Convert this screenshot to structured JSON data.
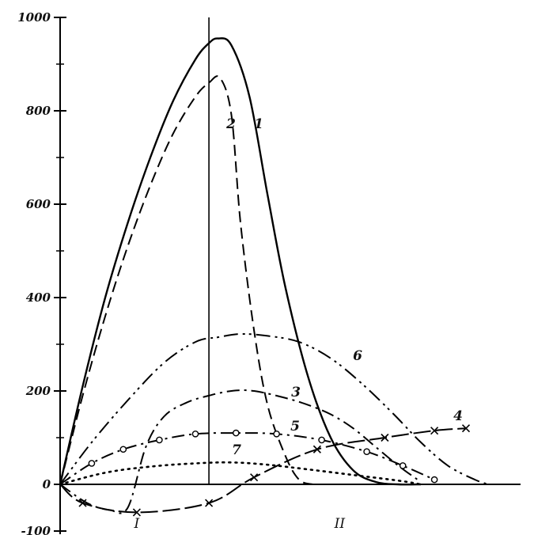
{
  "chart_data": {
    "type": "line",
    "title": "",
    "xlabel": "",
    "ylabel": "",
    "ylim": [
      -100,
      1000
    ],
    "xlim": [
      0,
      10
    ],
    "y_ticks": [
      -100,
      0,
      200,
      400,
      600,
      800,
      1000
    ],
    "y_tick_labels": [
      "-100",
      "0",
      "200",
      "400",
      "600",
      "800",
      "1000"
    ],
    "vertical_divider_x": 3.3,
    "region_labels": [
      {
        "text": "I",
        "x": 1.7
      },
      {
        "text": "II",
        "x": 6.2
      }
    ],
    "grid": false,
    "legend": "none",
    "series": [
      {
        "name": "1",
        "style": "solid",
        "marker": "none",
        "x": [
          0,
          0.5,
          1,
          1.5,
          2,
          2.5,
          3,
          3.3,
          3.5,
          3.8,
          4.2,
          4.6,
          5,
          5.5,
          6,
          6.5,
          7,
          7.5,
          8
        ],
        "y": [
          0,
          210,
          400,
          560,
          700,
          820,
          910,
          945,
          955,
          940,
          830,
          620,
          420,
          230,
          100,
          30,
          5,
          0,
          0
        ]
      },
      {
        "name": "2",
        "style": "dashed",
        "marker": "none",
        "x": [
          0,
          0.5,
          1,
          1.5,
          2,
          2.5,
          3,
          3.3,
          3.55,
          3.8,
          4.0,
          4.3,
          4.6,
          5.0,
          5.3,
          5.6
        ],
        "y": [
          0,
          190,
          360,
          510,
          640,
          750,
          830,
          860,
          870,
          790,
          560,
          330,
          170,
          60,
          10,
          0
        ]
      },
      {
        "name": "3",
        "style": "dash-dot",
        "marker": "none",
        "x": [
          0,
          0.6,
          1.1,
          1.5,
          1.9,
          2.3,
          2.8,
          3.3,
          3.8,
          4.3,
          5,
          5.5,
          6,
          6.5,
          7,
          7.5,
          8
        ],
        "y": [
          0,
          -40,
          -55,
          -50,
          80,
          145,
          175,
          190,
          200,
          200,
          185,
          170,
          150,
          120,
          80,
          40,
          5
        ]
      },
      {
        "name": "4",
        "style": "long-dash",
        "marker": "x",
        "x": [
          0,
          0.5,
          1.7,
          3.3,
          4.3,
          5.7,
          7.2,
          8.3,
          9.0
        ],
        "y": [
          0,
          -40,
          -60,
          -40,
          15,
          75,
          100,
          115,
          120
        ]
      },
      {
        "name": "5",
        "style": "dash-dot",
        "marker": "o",
        "x": [
          0,
          0.7,
          1.4,
          2.2,
          3.0,
          3.9,
          4.8,
          5.8,
          6.8,
          7.6,
          8.3
        ],
        "y": [
          0,
          45,
          75,
          95,
          108,
          110,
          108,
          95,
          70,
          40,
          10
        ]
      },
      {
        "name": "6",
        "style": "dash-dot-dot",
        "marker": "none",
        "x": [
          0,
          0.7,
          1.5,
          2.3,
          3.0,
          3.5,
          4.0,
          4.6,
          5.3,
          6.0,
          6.7,
          7.4,
          8.0,
          8.6,
          9.2,
          9.5
        ],
        "y": [
          0,
          90,
          180,
          260,
          305,
          315,
          322,
          318,
          305,
          270,
          215,
          150,
          90,
          40,
          10,
          0
        ]
      },
      {
        "name": "7",
        "style": "dotted",
        "marker": "none",
        "x": [
          0,
          1,
          2,
          3,
          3.8,
          4.6,
          5.5,
          6.5,
          7.5,
          8.0
        ],
        "y": [
          0,
          25,
          38,
          45,
          47,
          42,
          32,
          20,
          8,
          0
        ]
      }
    ]
  }
}
